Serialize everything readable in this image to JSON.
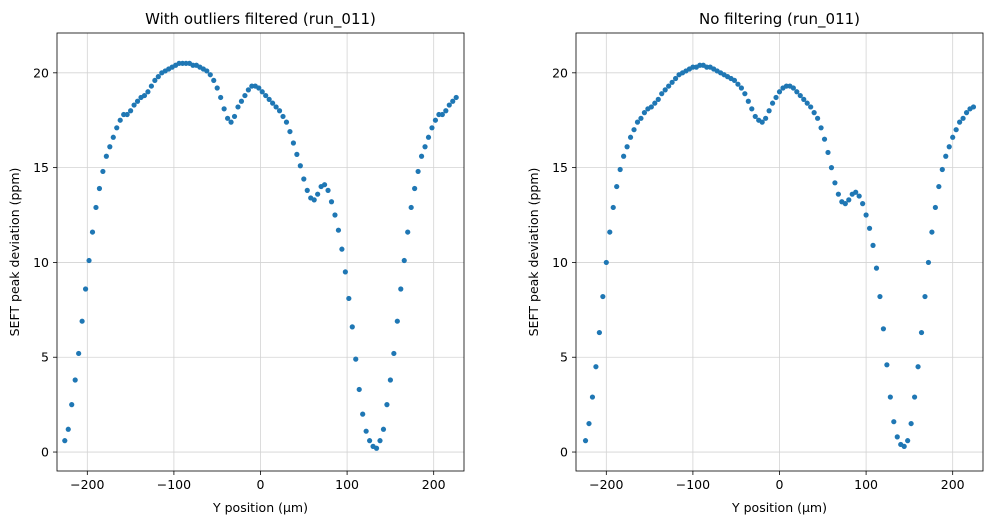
{
  "chart_data": [
    {
      "type": "scatter",
      "title": "With outliers filtered (run_011)",
      "xlabel": "Y position (µm)",
      "ylabel": "SEFT peak deviation (ppm)",
      "xlim": [
        -235,
        235
      ],
      "ylim": [
        -1.0,
        22.1
      ],
      "xticks": [
        -200,
        -100,
        0,
        100,
        200
      ],
      "xtick_labels": [
        "−200",
        "−100",
        "0",
        "100",
        "200"
      ],
      "yticks": [
        0,
        5,
        10,
        15,
        20
      ],
      "ytick_labels": [
        "0",
        "5",
        "10",
        "15",
        "20"
      ],
      "grid": true,
      "color": "#1f77b4",
      "series": [
        {
          "x": [
            -226,
            -222,
            -218,
            -214,
            -210,
            -206,
            -202,
            -198,
            -194,
            -190,
            -186,
            -182,
            -178,
            -174,
            -170,
            -166,
            -162,
            -158,
            -154,
            -150,
            -146,
            -142,
            -138,
            -134,
            -130,
            -126,
            -122,
            -118,
            -114,
            -110,
            -106,
            -102,
            -98,
            -94,
            -90,
            -86,
            -82,
            -78,
            -74,
            -70,
            -66,
            -62,
            -58,
            -54,
            -50,
            -46,
            -42,
            -38,
            -34,
            -30,
            -26,
            -22,
            -18,
            -14,
            -10,
            -6,
            -2,
            2,
            6,
            10,
            14,
            18,
            22,
            26,
            30,
            34,
            38,
            42,
            46,
            50,
            54,
            58,
            62,
            66,
            70,
            74,
            78,
            82,
            86,
            90,
            94,
            98,
            102,
            106,
            110,
            114,
            118,
            122,
            126,
            130,
            134,
            138,
            142,
            146,
            150,
            154,
            158,
            162,
            166,
            170,
            174,
            178,
            182,
            186,
            190,
            194,
            198,
            202,
            206,
            210,
            214,
            218,
            222,
            226
          ],
          "y": [
            0.6,
            1.2,
            2.5,
            3.8,
            5.2,
            6.9,
            8.6,
            10.1,
            11.6,
            12.9,
            13.9,
            14.8,
            15.6,
            16.1,
            16.6,
            17.1,
            17.5,
            17.8,
            17.8,
            18.0,
            18.3,
            18.5,
            18.7,
            18.8,
            19.0,
            19.3,
            19.6,
            19.8,
            20.0,
            20.1,
            20.2,
            20.3,
            20.4,
            20.5,
            20.5,
            20.5,
            20.5,
            20.4,
            20.4,
            20.3,
            20.2,
            20.1,
            19.9,
            19.6,
            19.2,
            18.7,
            18.1,
            17.6,
            17.4,
            17.7,
            18.2,
            18.5,
            18.8,
            19.1,
            19.3,
            19.3,
            19.2,
            19.0,
            18.8,
            18.6,
            18.4,
            18.2,
            18.0,
            17.7,
            17.4,
            16.9,
            16.3,
            15.7,
            15.1,
            14.4,
            13.8,
            13.4,
            13.3,
            13.6,
            14.0,
            14.1,
            13.8,
            13.2,
            12.5,
            11.7,
            10.7,
            9.5,
            8.1,
            6.6,
            4.9,
            3.3,
            2.0,
            1.1,
            0.6,
            0.3,
            0.2,
            0.6,
            1.2,
            2.5,
            3.8,
            5.2,
            6.9,
            8.6,
            10.1,
            11.6,
            12.9,
            13.9,
            14.8,
            15.6,
            16.1,
            16.6,
            17.1,
            17.5,
            17.8,
            17.8,
            18.0,
            18.3,
            18.5,
            18.7
          ]
        }
      ]
    },
    {
      "type": "scatter",
      "title": "No filtering (run_011)",
      "xlabel": "Y position (µm)",
      "ylabel": "SEFT peak deviation (ppm)",
      "xlim": [
        -235,
        235
      ],
      "ylim": [
        -1.0,
        22.1
      ],
      "xticks": [
        -200,
        -100,
        0,
        100,
        200
      ],
      "xtick_labels": [
        "−200",
        "−100",
        "0",
        "100",
        "200"
      ],
      "yticks": [
        0,
        5,
        10,
        15,
        20
      ],
      "ytick_labels": [
        "0",
        "5",
        "10",
        "15",
        "20"
      ],
      "grid": true,
      "color": "#1f77b4",
      "series": [
        {
          "x": [
            -224,
            -220,
            -216,
            -212,
            -208,
            -204,
            -200,
            -196,
            -192,
            -188,
            -184,
            -180,
            -176,
            -172,
            -168,
            -164,
            -160,
            -156,
            -152,
            -148,
            -144,
            -140,
            -136,
            -132,
            -128,
            -124,
            -120,
            -116,
            -112,
            -108,
            -104,
            -100,
            -96,
            -92,
            -88,
            -84,
            -80,
            -76,
            -72,
            -68,
            -64,
            -60,
            -56,
            -52,
            -48,
            -44,
            -40,
            -36,
            -32,
            -28,
            -24,
            -20,
            -16,
            -12,
            -8,
            -4,
            0,
            4,
            8,
            12,
            16,
            20,
            24,
            28,
            32,
            36,
            40,
            44,
            48,
            52,
            56,
            60,
            64,
            68,
            72,
            76,
            80,
            84,
            88,
            92,
            96,
            100,
            104,
            108,
            112,
            116,
            120,
            124,
            128,
            132,
            136,
            140,
            144,
            148,
            152,
            156,
            160,
            164,
            168,
            172,
            176,
            180,
            184,
            188,
            192,
            196,
            200,
            204,
            208,
            212,
            216,
            220,
            224
          ],
          "y": [
            0.6,
            1.5,
            2.9,
            4.5,
            6.3,
            8.2,
            10.0,
            11.6,
            12.9,
            14.0,
            14.9,
            15.6,
            16.1,
            16.6,
            17.0,
            17.4,
            17.6,
            17.9,
            18.1,
            18.2,
            18.4,
            18.6,
            18.9,
            19.1,
            19.3,
            19.5,
            19.7,
            19.9,
            20.0,
            20.1,
            20.2,
            20.3,
            20.3,
            20.4,
            20.4,
            20.3,
            20.3,
            20.2,
            20.1,
            20.0,
            19.9,
            19.8,
            19.7,
            19.6,
            19.4,
            19.2,
            18.9,
            18.5,
            18.1,
            17.7,
            17.5,
            17.4,
            17.6,
            18.0,
            18.4,
            18.7,
            19.0,
            19.2,
            19.3,
            19.3,
            19.2,
            19.0,
            18.8,
            18.6,
            18.4,
            18.2,
            17.9,
            17.6,
            17.1,
            16.5,
            15.8,
            15.0,
            14.2,
            13.6,
            13.2,
            13.1,
            13.3,
            13.6,
            13.7,
            13.5,
            13.1,
            12.5,
            11.8,
            10.9,
            9.7,
            8.2,
            6.5,
            4.6,
            2.9,
            1.6,
            0.8,
            0.4,
            0.3,
            0.6,
            1.5,
            2.9,
            4.5,
            6.3,
            8.2,
            10.0,
            11.6,
            12.9,
            14.0,
            14.9,
            15.6,
            16.1,
            16.6,
            17.0,
            17.4,
            17.6,
            17.9,
            18.1,
            18.2
          ]
        }
      ]
    }
  ]
}
